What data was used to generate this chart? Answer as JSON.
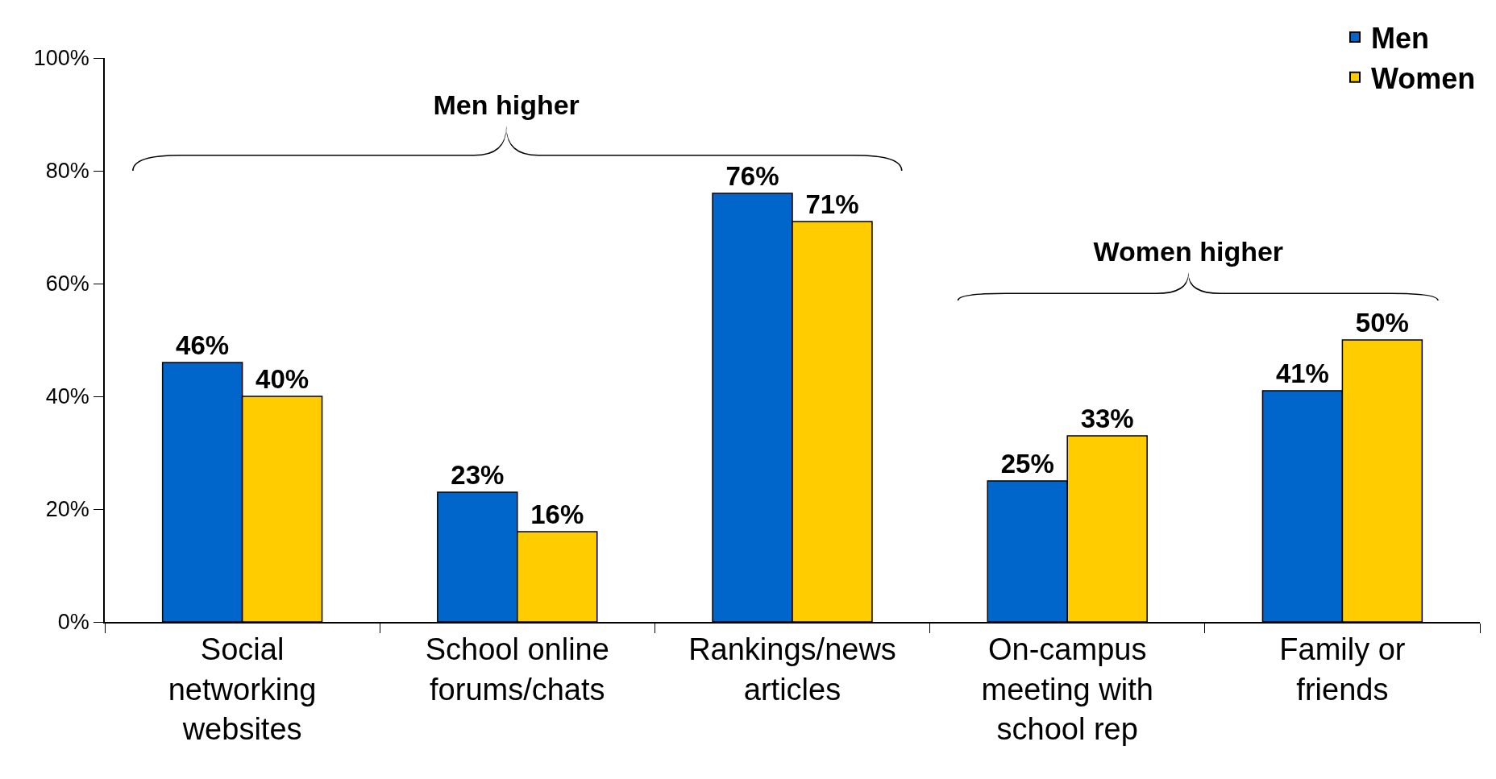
{
  "chart_data": {
    "type": "bar",
    "categories": [
      "Social networking websites",
      "School online forums/chats",
      "Rankings/news articles",
      "On-campus meeting with school rep",
      "Family or friends"
    ],
    "series": [
      {
        "name": "Men",
        "color": "#0066cc",
        "values": [
          46,
          23,
          76,
          25,
          41
        ],
        "value_labels": [
          "46%",
          "23%",
          "76%",
          "25%",
          "41%"
        ]
      },
      {
        "name": "Women",
        "color": "#ffcc00",
        "values": [
          40,
          16,
          71,
          33,
          50
        ],
        "value_labels": [
          "40%",
          "16%",
          "71%",
          "33%",
          "50%"
        ]
      }
    ],
    "ylim": [
      0,
      100
    ],
    "yticks": [
      {
        "value": 0,
        "label": "0%"
      },
      {
        "value": 20,
        "label": "20%"
      },
      {
        "value": 40,
        "label": "40%"
      },
      {
        "value": 60,
        "label": "60%"
      },
      {
        "value": 80,
        "label": "80%"
      },
      {
        "value": 100,
        "label": "100%"
      }
    ],
    "grid": false,
    "legend": "top right",
    "annotations": [
      "Men higher",
      "Women higher"
    ]
  }
}
